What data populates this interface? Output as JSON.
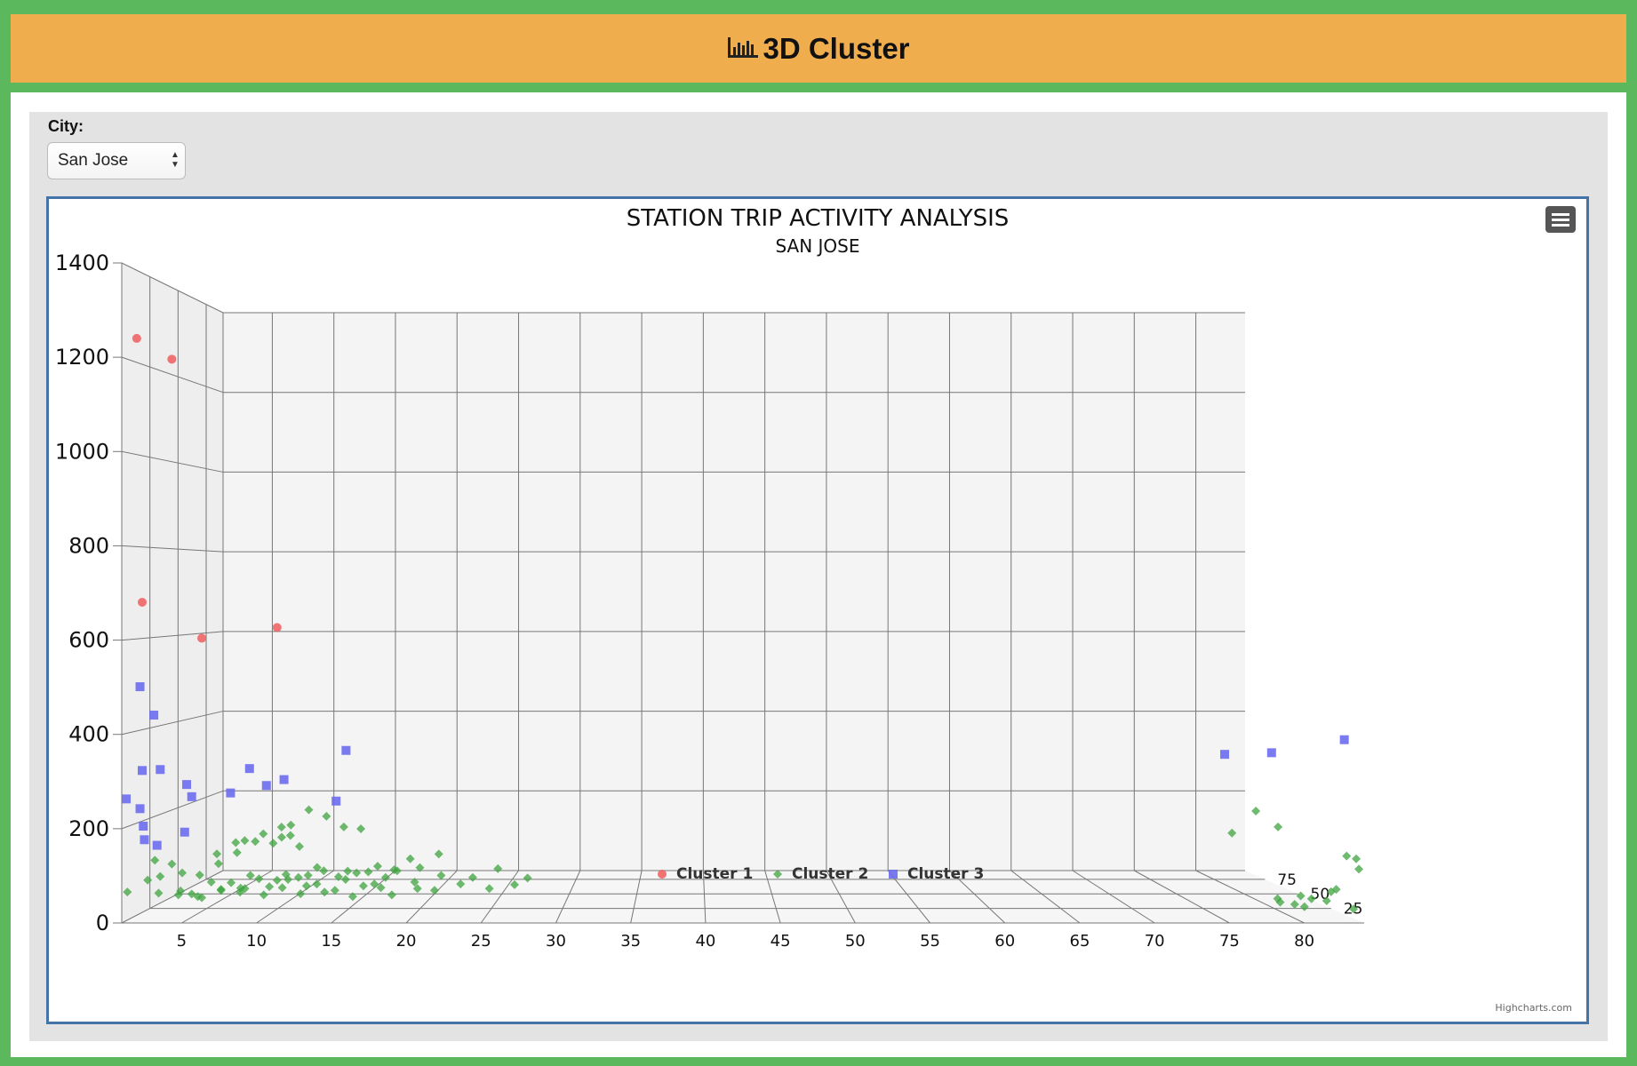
{
  "header": {
    "title": "3D Cluster",
    "icon": "bar-chart-icon"
  },
  "filter": {
    "label": "City:",
    "selected": "San Jose"
  },
  "chart_data": {
    "type": "scatter",
    "title": "STATION TRIP ACTIVITY ANALYSIS",
    "subtitle": "SAN JOSE",
    "ylim": [
      0,
      1400
    ],
    "xlim": [
      1,
      84
    ],
    "zlim": [
      0,
      90
    ],
    "y_ticks": [
      0,
      200,
      400,
      600,
      800,
      1000,
      1200,
      1400
    ],
    "x_ticks": [
      5,
      10,
      15,
      20,
      25,
      30,
      35,
      40,
      45,
      50,
      55,
      60,
      65,
      70,
      75,
      80
    ],
    "z_ticks": [
      25,
      50,
      75
    ],
    "grid": true,
    "legend": {
      "position": "bottom-center",
      "items": [
        "Cluster 1",
        "Cluster 2",
        "Cluster 3"
      ]
    },
    "credits": "Highcharts.com",
    "series": [
      {
        "name": "Cluster 1",
        "color": "#f15c5c",
        "marker": "circle",
        "points": [
          [
            2,
            1240,
            0
          ],
          [
            4,
            1200,
            5
          ],
          [
            2,
            680,
            5
          ],
          [
            5,
            600,
            20
          ],
          [
            9,
            620,
            40
          ]
        ]
      },
      {
        "name": "Cluster 2",
        "color": "#3da33d",
        "marker": "diamond",
        "points": [
          [
            1,
            60,
            5
          ],
          [
            2,
            80,
            10
          ],
          [
            3,
            90,
            8
          ],
          [
            3,
            130,
            3
          ],
          [
            4,
            120,
            5
          ],
          [
            4,
            90,
            15
          ],
          [
            2,
            40,
            20
          ],
          [
            3,
            30,
            25
          ],
          [
            4,
            20,
            30
          ],
          [
            5,
            30,
            20
          ],
          [
            5,
            50,
            10
          ],
          [
            6,
            70,
            15
          ],
          [
            6,
            40,
            25
          ],
          [
            7,
            30,
            30
          ],
          [
            7,
            60,
            10
          ],
          [
            8,
            80,
            5
          ],
          [
            8,
            50,
            20
          ],
          [
            9,
            30,
            25
          ],
          [
            9,
            90,
            10
          ],
          [
            10,
            60,
            15
          ],
          [
            10,
            40,
            30
          ],
          [
            11,
            70,
            20
          ],
          [
            11,
            20,
            35
          ],
          [
            12,
            50,
            25
          ],
          [
            12,
            80,
            15
          ],
          [
            13,
            30,
            30
          ],
          [
            13,
            60,
            20
          ],
          [
            14,
            40,
            25
          ],
          [
            14,
            100,
            10
          ],
          [
            15,
            70,
            20
          ],
          [
            15,
            20,
            30
          ],
          [
            16,
            50,
            25
          ],
          [
            16,
            90,
            15
          ],
          [
            17,
            60,
            20
          ],
          [
            17,
            40,
            30
          ],
          [
            18,
            80,
            15
          ],
          [
            18,
            30,
            25
          ],
          [
            19,
            100,
            10
          ],
          [
            20,
            50,
            20
          ],
          [
            20,
            70,
            15
          ],
          [
            21,
            40,
            25
          ],
          [
            22,
            90,
            10
          ],
          [
            23,
            60,
            20
          ],
          [
            24,
            80,
            15
          ],
          [
            25,
            50,
            20
          ],
          [
            26,
            110,
            5
          ],
          [
            27,
            70,
            10
          ],
          [
            28,
            90,
            5
          ],
          [
            5,
            110,
            35
          ],
          [
            6,
            130,
            40
          ],
          [
            7,
            140,
            35
          ],
          [
            8,
            150,
            40
          ],
          [
            9,
            160,
            45
          ],
          [
            10,
            170,
            40
          ],
          [
            11,
            200,
            45
          ],
          [
            12,
            180,
            50
          ],
          [
            13,
            150,
            55
          ],
          [
            14,
            140,
            60
          ],
          [
            6,
            20,
            45
          ],
          [
            7,
            35,
            50
          ],
          [
            8,
            25,
            55
          ],
          [
            9,
            45,
            50
          ],
          [
            10,
            30,
            60
          ],
          [
            11,
            55,
            55
          ],
          [
            12,
            20,
            65
          ],
          [
            13,
            40,
            60
          ],
          [
            14,
            25,
            70
          ],
          [
            15,
            45,
            65
          ],
          [
            16,
            30,
            70
          ],
          [
            17,
            50,
            75
          ],
          [
            18,
            35,
            70
          ],
          [
            19,
            55,
            80
          ],
          [
            2,
            20,
            40
          ],
          [
            3,
            50,
            45
          ],
          [
            4,
            70,
            50
          ],
          [
            5,
            90,
            55
          ],
          [
            6,
            110,
            60
          ],
          [
            7,
            100,
            65
          ],
          [
            8,
            120,
            60
          ],
          [
            9,
            130,
            55
          ],
          [
            10,
            110,
            50
          ],
          [
            79,
            40,
            10
          ],
          [
            80,
            30,
            8
          ],
          [
            81,
            20,
            12
          ],
          [
            82,
            40,
            6
          ],
          [
            83,
            60,
            10
          ],
          [
            80,
            20,
            20
          ],
          [
            81,
            40,
            15
          ],
          [
            82,
            30,
            18
          ],
          [
            83,
            50,
            14
          ],
          [
            84,
            20,
            8
          ],
          [
            84,
            110,
            4
          ],
          [
            83,
            140,
            2
          ],
          [
            84,
            130,
            6
          ],
          [
            80,
            130,
            60
          ],
          [
            82,
            180,
            62
          ],
          [
            83,
            150,
            55
          ]
        ]
      },
      {
        "name": "Cluster 3",
        "color": "#6c6cf0",
        "marker": "square",
        "points": [
          [
            2,
            500,
            3
          ],
          [
            3,
            440,
            2
          ],
          [
            2,
            320,
            5
          ],
          [
            3,
            320,
            8
          ],
          [
            1,
            260,
            4
          ],
          [
            2,
            240,
            3
          ],
          [
            2,
            200,
            6
          ],
          [
            2,
            170,
            7
          ],
          [
            3,
            160,
            5
          ],
          [
            5,
            290,
            5
          ],
          [
            5,
            260,
            10
          ],
          [
            5,
            190,
            3
          ],
          [
            7,
            260,
            20
          ],
          [
            8,
            310,
            25
          ],
          [
            9,
            270,
            28
          ],
          [
            10,
            280,
            32
          ],
          [
            14,
            340,
            40
          ],
          [
            13,
            220,
            45
          ],
          [
            79,
            320,
            55
          ],
          [
            83,
            320,
            60
          ],
          [
            84,
            380,
            15
          ]
        ]
      }
    ]
  }
}
